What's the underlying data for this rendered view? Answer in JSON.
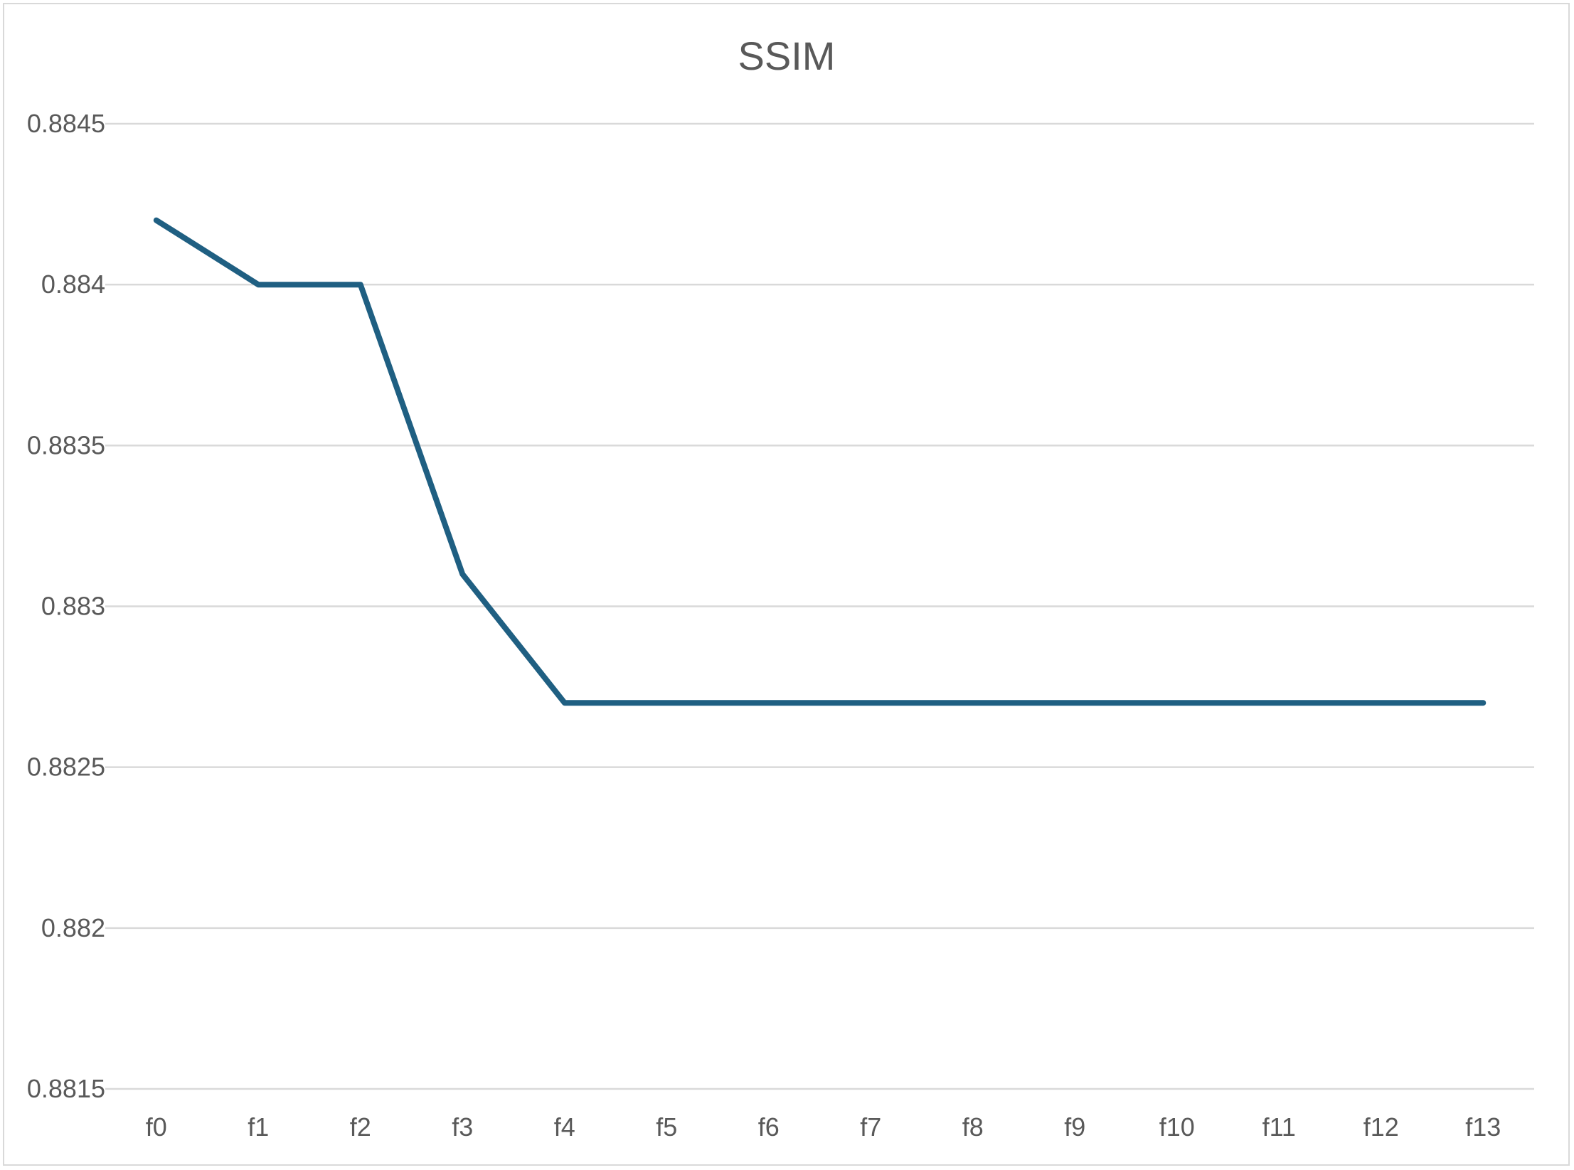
{
  "chart_data": {
    "type": "line",
    "title": "SSIM",
    "xlabel": "",
    "ylabel": "",
    "categories": [
      "f0",
      "f1",
      "f2",
      "f3",
      "f4",
      "f5",
      "f6",
      "f7",
      "f8",
      "f9",
      "f10",
      "f11",
      "f12",
      "f13"
    ],
    "series": [
      {
        "values": [
          0.8842,
          0.884,
          0.884,
          0.8831,
          0.8827,
          0.8827,
          0.8827,
          0.8827,
          0.8827,
          0.8827,
          0.8827,
          0.8827,
          0.8827,
          0.8827
        ],
        "color": "#1f5f82"
      }
    ],
    "ylim": [
      0.8815,
      0.8845
    ],
    "yticks": [
      0.8815,
      0.882,
      0.8825,
      0.883,
      0.8835,
      0.884,
      0.8845
    ],
    "ytick_labels": [
      "0.8815",
      "0.882",
      "0.8825",
      "0.883",
      "0.8835",
      "0.884",
      "0.8845"
    ],
    "grid": true,
    "legend": "none"
  }
}
